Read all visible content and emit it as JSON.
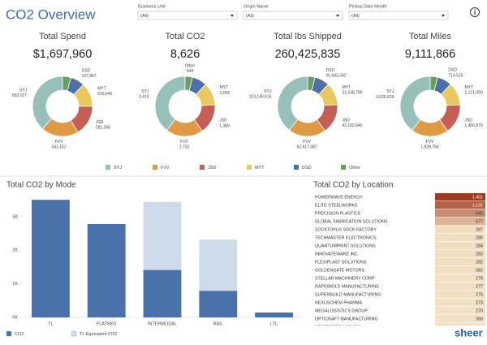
{
  "header": {
    "title": "CO2 Overview",
    "logo": "sheer"
  },
  "filters": [
    {
      "label": "Business Unit",
      "value": "(All)"
    },
    {
      "label": "Origin Name",
      "value": "(All)"
    },
    {
      "label": "Pickup Date Month",
      "value": "(All)"
    }
  ],
  "chart_data": [
    {
      "type": "donut",
      "title": "Total Spend",
      "total": "$1,697,960",
      "categories": [
        "SYJ",
        "FVV",
        "JSD",
        "MYT",
        "DSD",
        "Other"
      ],
      "colors": [
        "#97c0bb",
        "#e09a45",
        "#c65e56",
        "#e9c860",
        "#4e70a6",
        "#6b9f5f"
      ],
      "values": [
        653027,
        341152,
        281058,
        216646,
        127867,
        78210
      ],
      "value_labels": [
        "653,027",
        "341,152",
        "281,058",
        "216,646",
        "127,867",
        null
      ]
    },
    {
      "type": "donut",
      "title": "Total CO2",
      "total": "8,626",
      "categories": [
        "SYJ",
        "FVV",
        "JSD",
        "MYT",
        "DSD",
        "Other"
      ],
      "colors": [
        "#97c0bb",
        "#e09a45",
        "#c65e56",
        "#e9c860",
        "#4e70a6",
        "#6b9f5f"
      ],
      "values": [
        3419,
        1732,
        1389,
        1056,
        686,
        344
      ],
      "value_labels": [
        "3,419",
        "1,732",
        "1,389",
        "1,056",
        null,
        "344"
      ]
    },
    {
      "type": "donut",
      "title": "Total lbs Shipped",
      "total": "260,425,835",
      "categories": [
        "SYJ",
        "FVV",
        "JSD",
        "MYT",
        "DSD",
        "Other"
      ],
      "colors": [
        "#97c0bb",
        "#e09a45",
        "#c65e56",
        "#e9c860",
        "#4e70a6",
        "#6b9f5f"
      ],
      "values": [
        103146616,
        52617387,
        42102640,
        31538780,
        20643342,
        10377070
      ],
      "value_labels": [
        "103,146,616",
        "52,617,387",
        "42,102,640",
        "31,538,780",
        "20,643,342",
        null
      ]
    },
    {
      "type": "donut",
      "title": "Total Miles",
      "total": "9,111,866",
      "categories": [
        "SYJ",
        "FVV",
        "JSD",
        "MYT",
        "DSD",
        "Other"
      ],
      "colors": [
        "#97c0bb",
        "#e09a45",
        "#c65e56",
        "#e9c860",
        "#4e70a6",
        "#6b9f5f"
      ],
      "values": [
        3626629,
        1829756,
        1456879,
        1121090,
        714515,
        362997
      ],
      "value_labels": [
        "3,626,629",
        "1,829,756",
        "1,456,879",
        "1,121,090",
        "714,515",
        null
      ]
    },
    {
      "type": "bar",
      "title": "Total CO2 by Mode",
      "categories": [
        "TL",
        "FLATBED",
        "INTERMODAL",
        "RAIL",
        "LTL"
      ],
      "series": [
        {
          "name": "CO2",
          "color": "#4a72aa",
          "values": [
            3500,
            2780,
            1410,
            790,
            146
          ]
        },
        {
          "name": "TL Equivalent CO2",
          "color": "#cddbeb",
          "values": [
            3500,
            2780,
            3440,
            2320,
            146
          ]
        }
      ],
      "ylim": [
        0,
        3650
      ],
      "yticks": [
        {
          "value": 0,
          "label": "0K"
        },
        {
          "value": 1000,
          "label": "1K"
        },
        {
          "value": 2000,
          "label": "2K"
        },
        {
          "value": 3000,
          "label": "3K"
        }
      ]
    },
    {
      "type": "highlight_table",
      "title": "Total CO2 by Location",
      "color_range": [
        "#f2e1c4",
        "#9d3b1e"
      ],
      "categories": [
        "POWERWAVE ENERGY",
        "ELITE STEELWORKS",
        "PRECISION PLASTICS",
        "GLOBAL FABRICATION SOLUTIONS",
        "SOCKTOPUS SOCK FACTORY",
        "TECHMASTER ELECTRONICS",
        "QUANTUMPRINT SOLUTIONS",
        "INNOVATEWARE INC.",
        "FLEXIPLAST SOLUTIONS",
        "GOLDENGATE MOTORS",
        "STELLAR MACHINERY CORP",
        "RAPIDMOLD MANUFACTURING",
        "SUPERBUILD MANUFACTURING",
        "NEXUSCHEM PHARMA",
        "MEGALOGISTICS GROUP",
        "OPTICRAFT MANUFACTURING",
        "PERFECTFIT APPAREL"
      ],
      "values": [
        1401,
        1131,
        840,
        577,
        287,
        285,
        284,
        283,
        282,
        281,
        279,
        277,
        275,
        273,
        270,
        269,
        null
      ],
      "value_labels": [
        "1,401",
        "1,131",
        "840",
        "577",
        "287",
        "285",
        "284",
        "283",
        "282",
        "281",
        "279",
        "277",
        "275",
        "273",
        "270",
        "269",
        null
      ]
    }
  ]
}
